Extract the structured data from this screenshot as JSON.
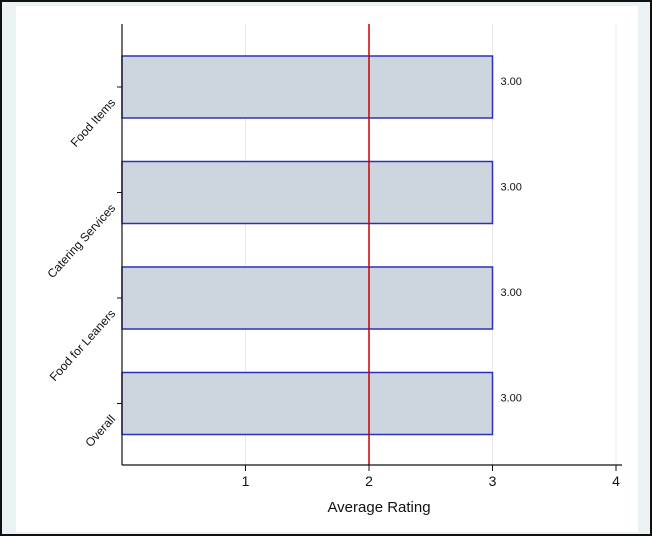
{
  "chart_data": {
    "type": "bar",
    "orientation": "horizontal",
    "categories": [
      "Food Items",
      "Catering Services",
      "Food for Leaners",
      "Overall"
    ],
    "values": [
      3.0,
      3.0,
      3.0,
      3.0
    ],
    "data_labels": [
      "3.00",
      "3.00",
      "3.00",
      "3.00"
    ],
    "title": "",
    "xlabel": "Average Rating",
    "ylabel": "",
    "xlim": [
      0,
      4
    ],
    "xticks": [
      1,
      2,
      3,
      4
    ],
    "xtick_labels": [
      "1",
      "2",
      "3",
      "4"
    ],
    "reference_line": {
      "x": 2,
      "color": "#cc0000"
    },
    "grid": true,
    "bar_fill": "#cdd5de",
    "bar_edge": "#2f2fbf",
    "background": "#eaf2f3"
  }
}
